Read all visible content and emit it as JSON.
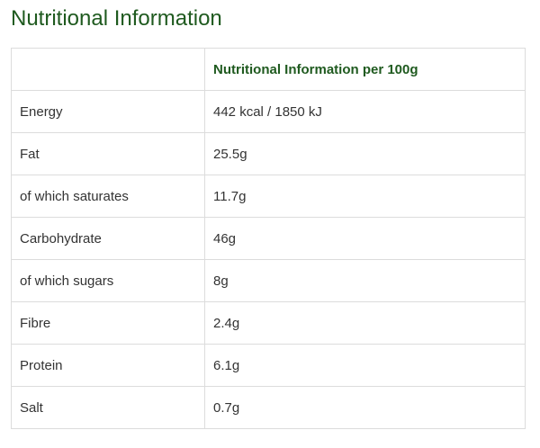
{
  "title": "Nutritional Information",
  "table": {
    "header": {
      "label": "",
      "value": "Nutritional Information per 100g"
    },
    "rows": [
      {
        "label": "Energy",
        "value": "442 kcal / 1850 kJ"
      },
      {
        "label": "Fat",
        "value": "25.5g"
      },
      {
        "label": "of which saturates",
        "value": "11.7g"
      },
      {
        "label": "Carbohydrate",
        "value": "46g"
      },
      {
        "label": "of which sugars",
        "value": "8g"
      },
      {
        "label": "Fibre",
        "value": "2.4g"
      },
      {
        "label": "Protein",
        "value": "6.1g"
      },
      {
        "label": "Salt",
        "value": "0.7g"
      }
    ]
  },
  "colors": {
    "heading": "#1f5a1f",
    "text": "#333333",
    "border": "#dcdcdc"
  }
}
